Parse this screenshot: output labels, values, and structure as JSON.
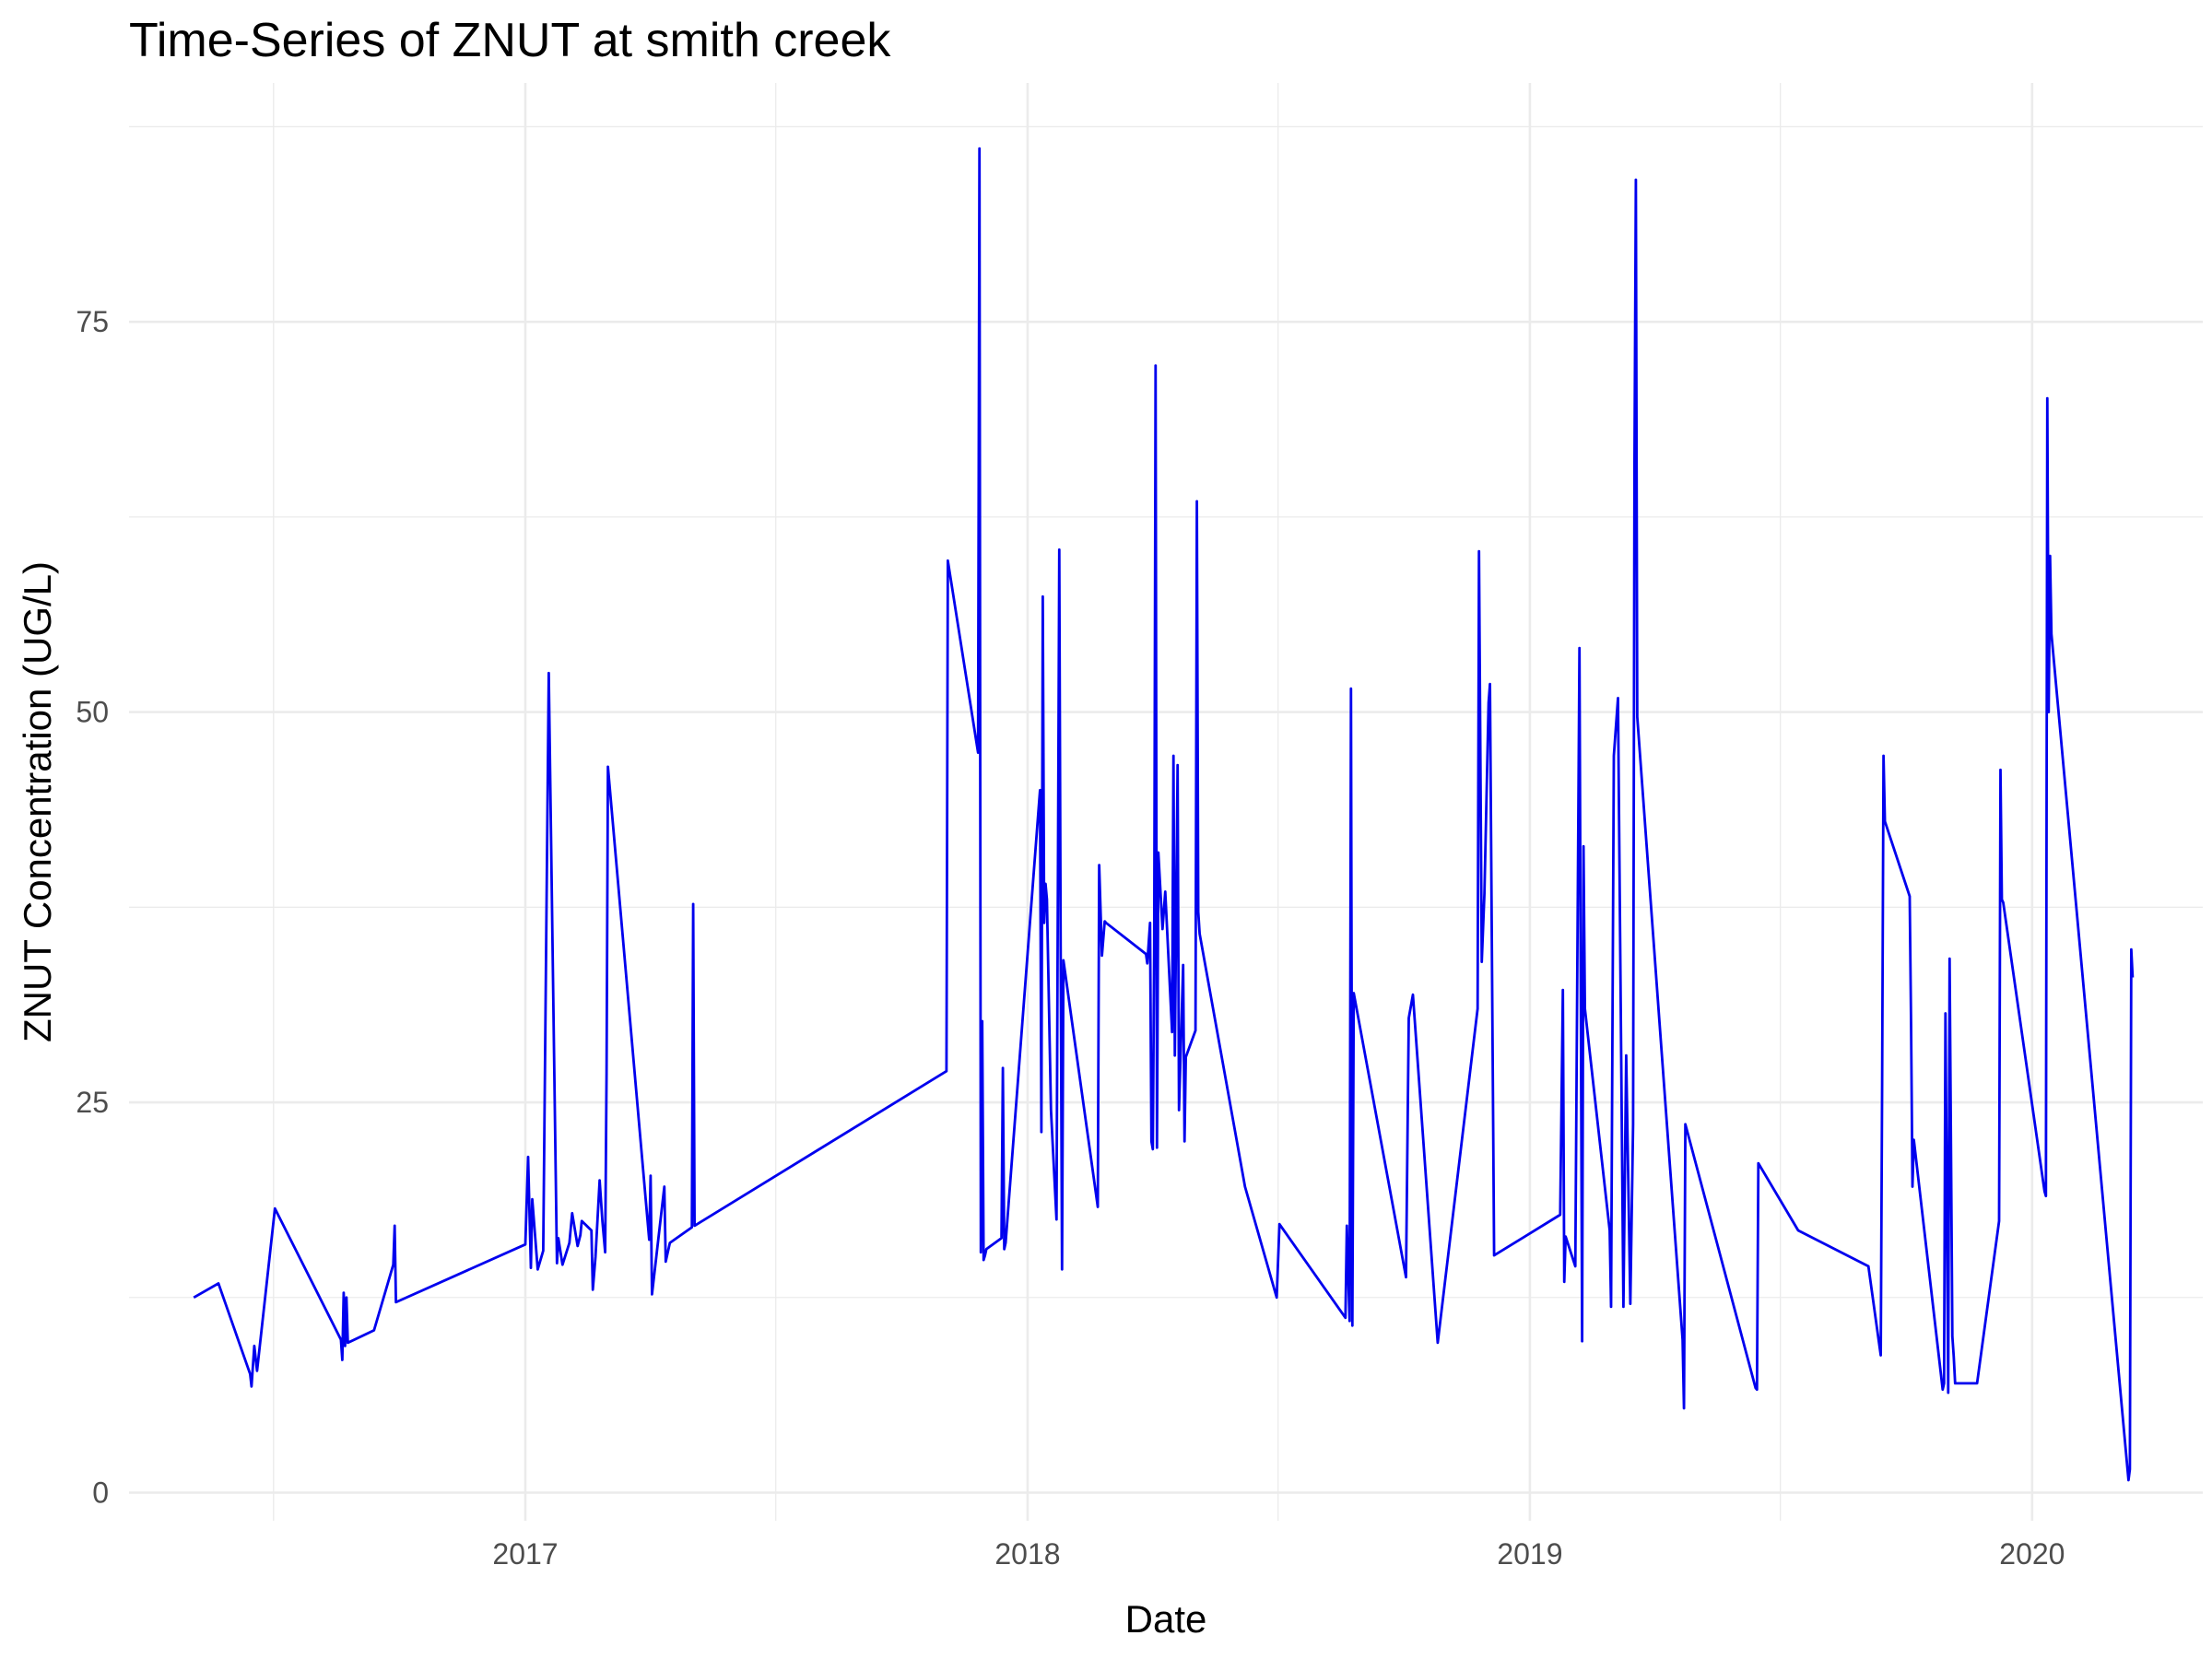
{
  "chart_data": {
    "type": "line",
    "title": "Time-Series of ZNUT at smith creek",
    "xlabel": "Date",
    "ylabel": "ZNUT Concentration (UG/L)",
    "x_type": "date",
    "x_ticks": [
      "2017",
      "2018",
      "2019",
      "2020"
    ],
    "y_ticks": [
      0,
      25,
      50,
      75
    ],
    "xlim": [
      "2016-03-19",
      "2020-05-04"
    ],
    "ylim": [
      -1.8,
      90.3
    ],
    "grid": true,
    "line_color": "#0000ee",
    "series": [
      {
        "x": [
          "2016-05-05",
          "2016-05-23",
          "2016-06-15",
          "2016-06-16",
          "2016-06-18",
          "2016-06-20",
          "2016-07-03",
          "2016-08-20",
          "2016-08-21",
          "2016-08-22",
          "2016-08-23",
          "2016-08-24",
          "2016-08-25",
          "2016-09-13",
          "2016-09-27",
          "2016-09-28",
          "2016-09-29",
          "2017-01-01",
          "2017-01-03",
          "2017-01-05",
          "2017-01-06",
          "2017-01-10",
          "2017-01-14",
          "2017-01-18",
          "2017-01-24",
          "2017-01-25",
          "2017-01-28",
          "2017-02-02",
          "2017-02-04",
          "2017-02-08",
          "2017-02-10",
          "2017-02-11",
          "2017-02-18",
          "2017-02-19",
          "2017-02-21",
          "2017-02-24",
          "2017-02-26",
          "2017-02-28",
          "2017-03-01",
          "2017-03-02",
          "2017-04-01",
          "2017-04-02",
          "2017-04-03",
          "2017-04-12",
          "2017-04-13",
          "2017-04-16",
          "2017-05-02",
          "2017-05-03",
          "2017-05-04",
          "2017-11-03",
          "2017-11-04",
          "2017-11-26",
          "2017-11-27",
          "2017-11-28",
          "2017-11-29",
          "2017-11-30",
          "2017-12-01",
          "2017-12-02",
          "2017-12-13",
          "2017-12-14",
          "2017-12-15",
          "2017-12-16",
          "2018-01-10",
          "2018-01-11",
          "2018-01-12",
          "2018-01-13",
          "2018-01-14",
          "2018-01-15",
          "2018-01-18",
          "2018-01-22",
          "2018-01-24",
          "2018-01-25",
          "2018-01-26",
          "2018-01-27",
          "2018-02-21",
          "2018-02-22",
          "2018-02-24",
          "2018-02-26",
          "2018-02-27",
          "2018-03-28",
          "2018-03-29",
          "2018-03-31",
          "2018-04-01",
          "2018-04-02",
          "2018-04-03",
          "2018-04-04",
          "2018-04-05",
          "2018-04-06",
          "2018-04-09",
          "2018-04-11",
          "2018-04-16",
          "2018-04-17",
          "2018-04-18",
          "2018-04-20",
          "2018-04-21",
          "2018-04-24",
          "2018-04-25",
          "2018-04-26",
          "2018-05-03",
          "2018-05-04",
          "2018-05-05",
          "2018-05-06",
          "2018-06-08",
          "2018-07-01",
          "2018-07-03",
          "2018-08-20",
          "2018-08-21",
          "2018-08-23",
          "2018-08-24",
          "2018-08-25",
          "2018-08-26",
          "2018-10-03",
          "2018-10-05",
          "2018-10-08",
          "2018-10-26",
          "2018-11-24",
          "2018-11-25",
          "2018-11-27",
          "2018-11-29",
          "2018-12-02",
          "2018-12-03",
          "2018-12-06",
          "2019-01-23",
          "2019-01-25",
          "2019-01-26",
          "2019-01-27",
          "2019-02-03",
          "2019-02-06",
          "2019-02-08",
          "2019-02-09",
          "2019-02-10",
          "2019-02-28",
          "2019-03-01",
          "2019-03-03",
          "2019-03-06",
          "2019-03-10",
          "2019-03-12",
          "2019-03-15",
          "2019-03-17",
          "2019-03-18",
          "2019-03-19",
          "2019-03-20",
          "2019-04-22",
          "2019-04-23",
          "2019-04-24",
          "2019-06-14",
          "2019-06-15",
          "2019-06-16",
          "2019-07-15",
          "2019-09-04",
          "2019-09-13",
          "2019-09-14",
          "2019-09-15",
          "2019-09-16",
          "2019-10-04",
          "2019-10-05",
          "2019-10-06",
          "2019-10-07",
          "2019-10-28",
          "2019-10-29",
          "2019-10-30",
          "2019-11-01",
          "2019-11-02",
          "2019-11-04",
          "2019-11-05",
          "2019-11-06",
          "2019-11-22",
          "2019-12-08",
          "2019-12-09",
          "2019-12-10",
          "2019-12-11",
          "2020-01-10",
          "2020-01-11",
          "2020-01-12",
          "2020-01-13",
          "2020-01-14",
          "2020-01-15",
          "2020-03-11",
          "2020-03-12",
          "2020-03-13",
          "2020-03-14"
        ],
        "values": [
          12.5,
          13.4,
          7.6,
          6.8,
          9.4,
          7.8,
          18.2,
          9.8,
          8.5,
          12.8,
          9.4,
          12.5,
          9.6,
          10.4,
          14.6,
          17.1,
          12.2,
          15.9,
          21.5,
          14.4,
          18.8,
          14.3,
          15.5,
          52.5,
          14.7,
          16.3,
          14.6,
          16.0,
          17.9,
          15.8,
          16.5,
          17.4,
          16.8,
          13.0,
          15.1,
          20.0,
          17.4,
          15.4,
          26.8,
          46.5,
          16.2,
          20.3,
          12.7,
          19.6,
          14.8,
          16.0,
          17.0,
          37.7,
          17.1,
          27.0,
          59.7,
          47.4,
          86.1,
          15.4,
          30.2,
          14.9,
          15.2,
          15.6,
          16.3,
          27.2,
          15.6,
          16.0,
          45.0,
          23.1,
          57.4,
          36.5,
          39.0,
          38.0,
          24.5,
          17.5,
          60.4,
          35.0,
          14.3,
          34.1,
          18.3,
          40.2,
          34.4,
          36.6,
          36.5,
          34.5,
          33.9,
          36.5,
          22.5,
          22.0,
          35.0,
          72.2,
          22.1,
          41.0,
          36.1,
          38.5,
          29.5,
          47.2,
          28.0,
          46.6,
          24.5,
          33.8,
          22.5,
          27.9,
          29.6,
          63.5,
          37.2,
          35.8,
          19.6,
          12.5,
          17.2,
          11.2,
          17.1,
          11.0,
          51.5,
          10.7,
          32.0,
          13.8,
          30.4,
          31.9,
          9.6,
          31.0,
          60.3,
          34.0,
          38.4,
          50.6,
          51.8,
          15.2,
          17.8,
          32.2,
          13.5,
          16.4,
          14.5,
          54.1,
          9.7,
          41.4,
          31.0,
          16.8,
          11.9,
          47.2,
          50.9,
          11.9,
          28.0,
          12.1,
          23.6,
          66.0,
          84.1,
          49.7,
          9.8,
          5.4,
          23.6,
          6.7,
          6.6,
          21.1,
          16.8,
          14.5,
          8.8,
          26.3,
          47.2,
          43.0,
          38.2,
          30.0,
          19.6,
          22.6,
          6.6,
          7.0,
          30.7,
          6.4,
          34.2,
          10.0,
          8.7,
          7.0,
          7.0,
          17.4,
          46.3,
          38.0,
          37.8,
          19.3,
          19.0,
          70.1,
          50.0,
          60.0,
          55.0,
          0.8,
          1.5,
          34.8,
          33.0
        ]
      }
    ]
  }
}
